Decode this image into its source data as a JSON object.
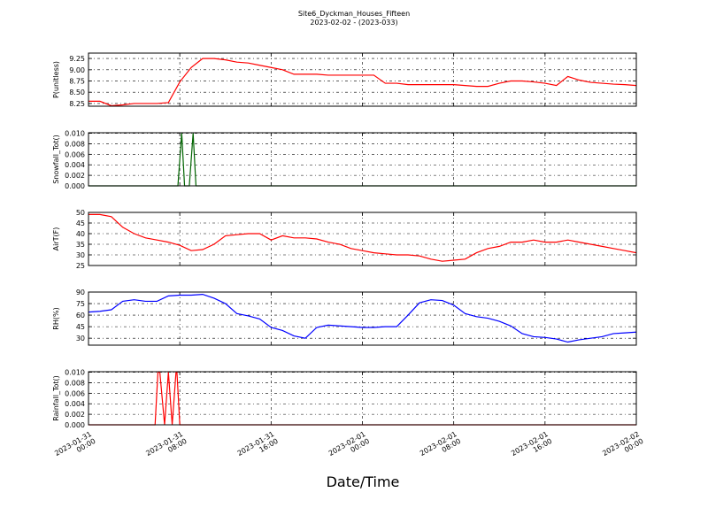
{
  "title": "Site6_Dyckman_Houses_Fifteen",
  "subtitle": "2023-02-02 - (2023-033)",
  "xlabel": "Date/Time",
  "xlim": [
    "2023-01-31 00:00",
    "2023-02-02 00:00"
  ],
  "xticks": [
    "2023-01-31 00:00",
    "2023-01-31 08:00",
    "2023-01-31 16:00",
    "2023-02-01 00:00",
    "2023-02-01 08:00",
    "2023-02-01 16:00",
    "2023-02-02 00:00"
  ],
  "grid": true,
  "chart_data": [
    {
      "type": "line",
      "ylabel": "P(unitless)",
      "ylim": [
        8.19,
        9.37
      ],
      "yticks": [
        8.25,
        {
          "value": 8.5,
          "label": "8.50"
        },
        8.75,
        {
          "value": 9.0,
          "label": "9.00"
        },
        9.25
      ],
      "x": [
        "2023-01-31 00:00",
        "2023-01-31 01:00",
        "2023-01-31 02:00",
        "2023-01-31 03:00",
        "2023-01-31 04:00",
        "2023-01-31 05:00",
        "2023-01-31 06:00",
        "2023-01-31 07:00",
        "2023-01-31 08:00",
        "2023-01-31 09:00",
        "2023-01-31 10:00",
        "2023-01-31 11:00",
        "2023-01-31 12:00",
        "2023-01-31 13:00",
        "2023-01-31 14:00",
        "2023-01-31 15:00",
        "2023-01-31 16:00",
        "2023-01-31 17:00",
        "2023-01-31 18:00",
        "2023-01-31 19:00",
        "2023-01-31 20:00",
        "2023-01-31 21:00",
        "2023-01-31 22:00",
        "2023-01-31 23:00",
        "2023-02-01 00:00",
        "2023-02-01 01:00",
        "2023-02-01 02:00",
        "2023-02-01 03:00",
        "2023-02-01 04:00",
        "2023-02-01 05:00",
        "2023-02-01 06:00",
        "2023-02-01 07:00",
        "2023-02-01 08:00",
        "2023-02-01 09:00",
        "2023-02-01 10:00",
        "2023-02-01 11:00",
        "2023-02-01 12:00",
        "2023-02-01 13:00",
        "2023-02-01 14:00",
        "2023-02-01 15:00",
        "2023-02-01 16:00",
        "2023-02-01 17:00",
        "2023-02-01 18:00",
        "2023-02-01 19:00",
        "2023-02-01 20:00",
        "2023-02-01 21:00",
        "2023-02-01 22:00",
        "2023-02-01 23:00",
        "2023-02-02 00:00"
      ],
      "series": [
        {
          "color": "#ff0000",
          "values": [
            8.3,
            8.3,
            8.2,
            8.22,
            8.25,
            8.25,
            8.25,
            8.27,
            8.73,
            9.05,
            9.25,
            9.25,
            9.22,
            9.17,
            9.15,
            9.1,
            9.05,
            9.0,
            8.9,
            8.9,
            8.9,
            8.88,
            8.88,
            8.88,
            8.88,
            8.88,
            8.7,
            8.7,
            8.67,
            8.67,
            8.67,
            8.67,
            8.67,
            8.65,
            8.63,
            8.63,
            8.7,
            8.75,
            8.75,
            8.73,
            8.7,
            8.65,
            8.85,
            8.77,
            8.72,
            8.7,
            8.68,
            8.67,
            8.65
          ]
        }
      ]
    },
    {
      "type": "line",
      "ylabel": "Snowfall_Tot()",
      "ylim": [
        0,
        0.0101
      ],
      "yticks": [
        {
          "value": 0,
          "label": "0.000"
        },
        {
          "value": 0.002,
          "label": "0.002"
        },
        {
          "value": 0.004,
          "label": "0.004"
        },
        {
          "value": 0.006,
          "label": "0.006"
        },
        {
          "value": 0.008,
          "label": "0.008"
        },
        {
          "value": 0.01,
          "label": "0.010"
        }
      ],
      "x": [
        "2023-01-31 00:00",
        "2023-01-31 07:50",
        "2023-01-31 08:10",
        "2023-01-31 08:25",
        "2023-01-31 08:50",
        "2023-01-31 09:10",
        "2023-01-31 09:25",
        "2023-02-02 00:00"
      ],
      "series": [
        {
          "color": "#006400",
          "values": [
            0,
            0,
            0.01,
            0,
            0,
            0.01,
            0,
            0
          ]
        }
      ]
    },
    {
      "type": "line",
      "ylabel": "AirT(F)",
      "ylim": [
        25,
        50
      ],
      "yticks": [
        25,
        30,
        35,
        40,
        45,
        50
      ],
      "x": [
        "2023-01-31 00:00",
        "2023-01-31 01:00",
        "2023-01-31 02:00",
        "2023-01-31 03:00",
        "2023-01-31 04:00",
        "2023-01-31 05:00",
        "2023-01-31 06:00",
        "2023-01-31 07:00",
        "2023-01-31 08:00",
        "2023-01-31 09:00",
        "2023-01-31 10:00",
        "2023-01-31 11:00",
        "2023-01-31 12:00",
        "2023-01-31 13:00",
        "2023-01-31 14:00",
        "2023-01-31 15:00",
        "2023-01-31 16:00",
        "2023-01-31 17:00",
        "2023-01-31 18:00",
        "2023-01-31 19:00",
        "2023-01-31 20:00",
        "2023-01-31 21:00",
        "2023-01-31 22:00",
        "2023-01-31 23:00",
        "2023-02-01 00:00",
        "2023-02-01 01:00",
        "2023-02-01 02:00",
        "2023-02-01 03:00",
        "2023-02-01 04:00",
        "2023-02-01 05:00",
        "2023-02-01 06:00",
        "2023-02-01 07:00",
        "2023-02-01 08:00",
        "2023-02-01 09:00",
        "2023-02-01 10:00",
        "2023-02-01 11:00",
        "2023-02-01 12:00",
        "2023-02-01 13:00",
        "2023-02-01 14:00",
        "2023-02-01 15:00",
        "2023-02-01 16:00",
        "2023-02-01 17:00",
        "2023-02-01 18:00",
        "2023-02-01 19:00",
        "2023-02-01 20:00",
        "2023-02-01 21:00",
        "2023-02-01 22:00",
        "2023-02-01 23:00",
        "2023-02-02 00:00"
      ],
      "series": [
        {
          "color": "#ff0000",
          "values": [
            49,
            49,
            48,
            43,
            40,
            38,
            37,
            36,
            34.5,
            32,
            32.5,
            35,
            39,
            39.5,
            40,
            40,
            37,
            39,
            38,
            38,
            37.5,
            36,
            35,
            33,
            32,
            31,
            30.5,
            30,
            30,
            29.5,
            28,
            27,
            27.5,
            28,
            31,
            33,
            34,
            36,
            36,
            37,
            36,
            36,
            37,
            36,
            35,
            34,
            33,
            32,
            31
          ]
        }
      ]
    },
    {
      "type": "line",
      "ylabel": "RH(%)",
      "ylim": [
        21,
        90
      ],
      "yticks": [
        30,
        45,
        60,
        75,
        90
      ],
      "x": [
        "2023-01-31 00:00",
        "2023-01-31 01:00",
        "2023-01-31 02:00",
        "2023-01-31 03:00",
        "2023-01-31 04:00",
        "2023-01-31 05:00",
        "2023-01-31 06:00",
        "2023-01-31 07:00",
        "2023-01-31 08:00",
        "2023-01-31 09:00",
        "2023-01-31 10:00",
        "2023-01-31 11:00",
        "2023-01-31 12:00",
        "2023-01-31 13:00",
        "2023-01-31 14:00",
        "2023-01-31 15:00",
        "2023-01-31 16:00",
        "2023-01-31 17:00",
        "2023-01-31 18:00",
        "2023-01-31 19:00",
        "2023-01-31 20:00",
        "2023-01-31 21:00",
        "2023-01-31 22:00",
        "2023-01-31 23:00",
        "2023-02-01 00:00",
        "2023-02-01 01:00",
        "2023-02-01 02:00",
        "2023-02-01 03:00",
        "2023-02-01 04:00",
        "2023-02-01 05:00",
        "2023-02-01 06:00",
        "2023-02-01 07:00",
        "2023-02-01 08:00",
        "2023-02-01 09:00",
        "2023-02-01 10:00",
        "2023-02-01 11:00",
        "2023-02-01 12:00",
        "2023-02-01 13:00",
        "2023-02-01 14:00",
        "2023-02-01 15:00",
        "2023-02-01 16:00",
        "2023-02-01 17:00",
        "2023-02-01 18:00",
        "2023-02-01 19:00",
        "2023-02-01 20:00",
        "2023-02-01 21:00",
        "2023-02-01 22:00",
        "2023-02-01 23:00",
        "2023-02-02 00:00"
      ],
      "series": [
        {
          "color": "#0000ff",
          "values": [
            64,
            65,
            67,
            78,
            80,
            78,
            78,
            85,
            86,
            86,
            87,
            82,
            75,
            62,
            59,
            55,
            44,
            40,
            33,
            30,
            44,
            47,
            46,
            45,
            44,
            44,
            45,
            45,
            60,
            76,
            80,
            79,
            73,
            62,
            58,
            56,
            52,
            46,
            36,
            32,
            31,
            29,
            25,
            28,
            30,
            32,
            36,
            37,
            38
          ]
        }
      ]
    },
    {
      "type": "line",
      "ylabel": "Rainfall_Tot()",
      "ylim": [
        0,
        0.0101
      ],
      "yticks": [
        {
          "value": 0,
          "label": "0.000"
        },
        {
          "value": 0.002,
          "label": "0.002"
        },
        {
          "value": 0.004,
          "label": "0.004"
        },
        {
          "value": 0.006,
          "label": "0.006"
        },
        {
          "value": 0.008,
          "label": "0.008"
        },
        {
          "value": 0.01,
          "label": "0.010"
        }
      ],
      "x": [
        "2023-01-31 00:00",
        "2023-01-31 05:50",
        "2023-01-31 06:05",
        "2023-01-31 06:15",
        "2023-01-31 06:40",
        "2023-01-31 07:00",
        "2023-01-31 07:20",
        "2023-01-31 07:40",
        "2023-01-31 07:45",
        "2023-01-31 08:00",
        "2023-02-02 00:00"
      ],
      "series": [
        {
          "color": "#ff0000",
          "values": [
            0,
            0,
            0.01,
            0.01,
            0,
            0.01,
            0,
            0.01,
            0.01,
            0,
            0
          ]
        }
      ]
    }
  ]
}
